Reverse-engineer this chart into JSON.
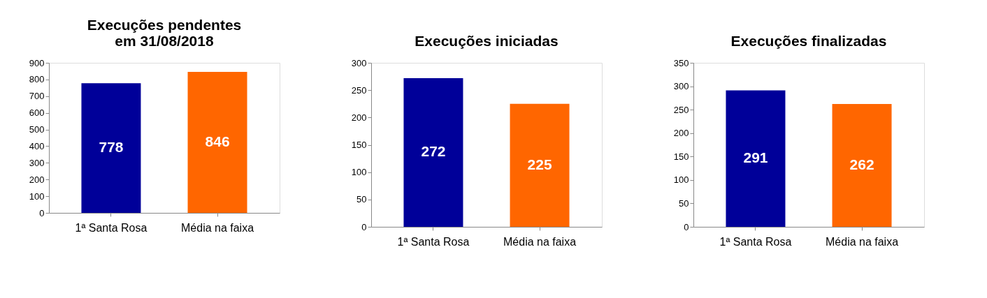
{
  "chart_data": [
    {
      "type": "bar",
      "title": "Execuções pendentes\nem 31/08/2018",
      "categories": [
        "1ª Santa Rosa",
        "Média na faixa"
      ],
      "values": [
        778,
        846
      ],
      "colors": [
        "#000099",
        "#ff6600"
      ],
      "ylim": [
        0,
        900
      ],
      "yticks": [
        0,
        100,
        200,
        300,
        400,
        500,
        600,
        700,
        800,
        900
      ],
      "data_labels": true,
      "grid": false
    },
    {
      "type": "bar",
      "title": "Execuções iniciadas",
      "categories": [
        "1ª Santa Rosa",
        "Média na faixa"
      ],
      "values": [
        272,
        225
      ],
      "colors": [
        "#000099",
        "#ff6600"
      ],
      "ylim": [
        0,
        300
      ],
      "yticks": [
        0,
        50,
        100,
        150,
        200,
        250,
        300
      ],
      "data_labels": true,
      "grid": false
    },
    {
      "type": "bar",
      "title": "Execuções finalizadas",
      "categories": [
        "1ª Santa Rosa",
        "Média na faixa"
      ],
      "values": [
        291,
        262
      ],
      "colors": [
        "#000099",
        "#ff6600"
      ],
      "ylim": [
        0,
        350
      ],
      "yticks": [
        0,
        50,
        100,
        150,
        200,
        250,
        300,
        350
      ],
      "data_labels": true,
      "grid": false
    }
  ]
}
